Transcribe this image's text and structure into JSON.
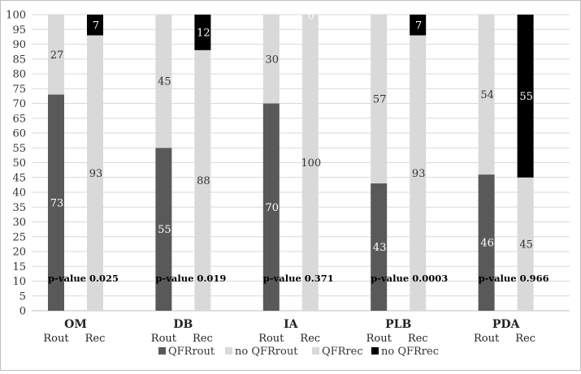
{
  "chart_data": {
    "type": "bar",
    "stacked": true,
    "title": "",
    "xlabel": "",
    "ylabel": "",
    "ylim": [
      0,
      100
    ],
    "yticks": [
      0,
      5,
      10,
      15,
      20,
      25,
      30,
      35,
      40,
      45,
      50,
      55,
      60,
      65,
      70,
      75,
      80,
      85,
      90,
      95,
      100
    ],
    "grid": true,
    "legend_position": "bottom",
    "groups": [
      {
        "name": "OM",
        "p_value_label": "p-value",
        "p_value": "0.025",
        "bars": [
          {
            "label": "Rout",
            "segments": [
              {
                "series": "QFRrout",
                "value": 73
              },
              {
                "series": "no QFRrout",
                "value": 27
              }
            ]
          },
          {
            "label": "Rec",
            "segments": [
              {
                "series": "QFRrec",
                "value": 93
              },
              {
                "series": "no QFRrec",
                "value": 7
              }
            ]
          }
        ]
      },
      {
        "name": "DB",
        "p_value_label": "p-value",
        "p_value": "0.019",
        "bars": [
          {
            "label": "Rout",
            "segments": [
              {
                "series": "QFRrout",
                "value": 55
              },
              {
                "series": "no QFRrout",
                "value": 45
              }
            ]
          },
          {
            "label": "Rec",
            "segments": [
              {
                "series": "QFRrec",
                "value": 88
              },
              {
                "series": "no QFRrec",
                "value": 12
              }
            ]
          }
        ]
      },
      {
        "name": "IA",
        "p_value_label": "p-value",
        "p_value": "0.371",
        "bars": [
          {
            "label": "Rout",
            "segments": [
              {
                "series": "QFRrout",
                "value": 70
              },
              {
                "series": "no QFRrout",
                "value": 30
              }
            ]
          },
          {
            "label": "Rec",
            "segments": [
              {
                "series": "QFRrec",
                "value": 100
              },
              {
                "series": "no QFRrec",
                "value": 0
              }
            ]
          }
        ]
      },
      {
        "name": "PLB",
        "p_value_label": "p-value",
        "p_value": "0.0003",
        "bars": [
          {
            "label": "Rout",
            "segments": [
              {
                "series": "QFRrout",
                "value": 43
              },
              {
                "series": "no QFRrout",
                "value": 57
              }
            ]
          },
          {
            "label": "Rec",
            "segments": [
              {
                "series": "QFRrec",
                "value": 93
              },
              {
                "series": "no QFRrec",
                "value": 7
              }
            ]
          }
        ]
      },
      {
        "name": "PDA",
        "p_value_label": "p-value",
        "p_value": "0.966",
        "bars": [
          {
            "label": "Rout",
            "segments": [
              {
                "series": "QFRrout",
                "value": 46
              },
              {
                "series": "no QFRrout",
                "value": 54
              }
            ]
          },
          {
            "label": "Rec",
            "segments": [
              {
                "series": "QFRrec",
                "value": 45
              },
              {
                "series": "no QFRrec",
                "value": 55
              }
            ]
          }
        ]
      }
    ],
    "series": [
      {
        "name": "QFRrout",
        "color": "#595959",
        "label_color": "#ffffff"
      },
      {
        "name": "no QFRrout",
        "color": "#d9d9d9",
        "label_color": "#333333"
      },
      {
        "name": "QFRrec",
        "color": "#d9d9d9",
        "label_color": "#333333"
      },
      {
        "name": "no QFRrec",
        "color": "#000000",
        "label_color": "#ffffff"
      }
    ],
    "gridline_color": "#d9d9d9",
    "axis_color": "#bfbfbf"
  }
}
